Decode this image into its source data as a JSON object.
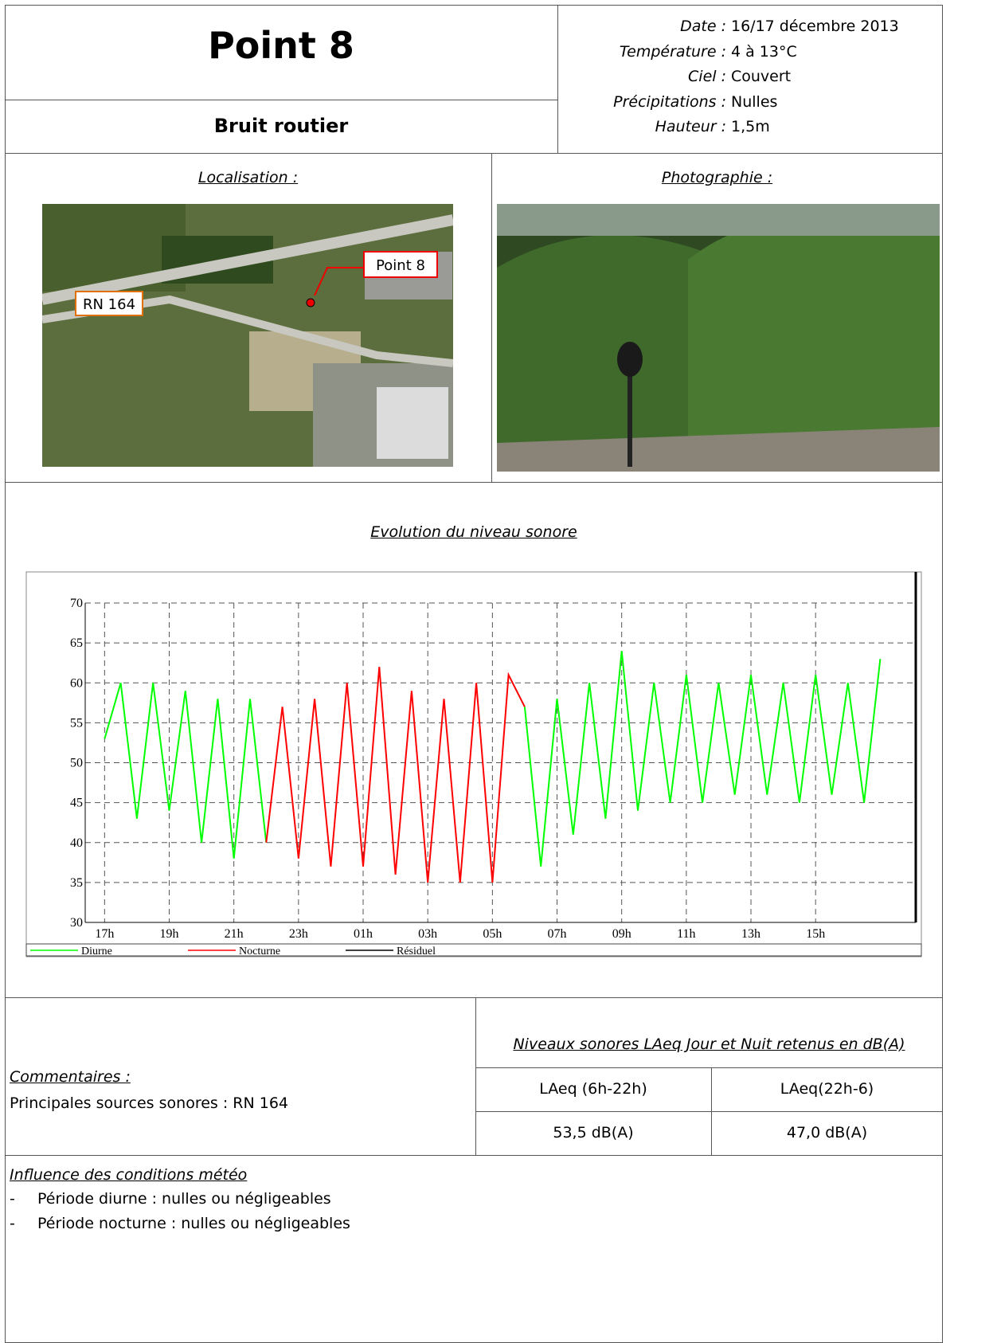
{
  "header": {
    "title": "Point 8",
    "subtitle": "Bruit routier",
    "meta": [
      {
        "label": "Date :",
        "value": "16/17 décembre 2013"
      },
      {
        "label": "Température :",
        "value": "4 à 13°C"
      },
      {
        "label": "Ciel :",
        "value": "Couvert"
      },
      {
        "label": "Précipitations :",
        "value": "Nulles"
      },
      {
        "label": "Hauteur :",
        "value": "1,5m"
      }
    ]
  },
  "localisation": {
    "title": "Localisation :",
    "point_label": "Point 8",
    "road_label": "RN 164"
  },
  "photo": {
    "title": "Photographie :"
  },
  "chart_data": {
    "type": "line",
    "title": "Evolution du niveau sonore",
    "x": [
      17,
      17.5,
      18,
      18.5,
      19,
      19.5,
      20,
      20.5,
      21,
      21.5,
      22,
      22.5,
      23,
      23.5,
      24,
      24.5,
      25,
      25.5,
      26,
      26.5,
      27,
      27.5,
      28,
      28.5,
      29,
      29.5,
      30,
      30.5,
      31,
      31.5,
      32,
      32.5,
      33,
      33.5,
      34,
      34.5,
      35,
      35.5,
      36,
      36.5,
      37,
      37.5,
      38,
      38.5,
      39,
      39.5,
      40,
      40.5,
      41
    ],
    "series": [
      {
        "name": "Diurne",
        "color": "#00ff00",
        "values": [
          53,
          60,
          43,
          60,
          44,
          59,
          40,
          58,
          38,
          58,
          40,
          null,
          null,
          null,
          null,
          null,
          null,
          null,
          null,
          null,
          null,
          null,
          null,
          null,
          null,
          null,
          57,
          37,
          58,
          41,
          60,
          43,
          64,
          44,
          60,
          45,
          61,
          45,
          60,
          46,
          61,
          46,
          60,
          45,
          61,
          46,
          60,
          45,
          63
        ]
      },
      {
        "name": "Nocturne",
        "color": "#ff0000",
        "values": [
          null,
          null,
          null,
          null,
          null,
          null,
          null,
          null,
          null,
          null,
          40,
          57,
          38,
          58,
          37,
          60,
          37,
          62,
          36,
          59,
          35,
          58,
          35,
          60,
          35,
          61,
          57,
          null,
          null,
          null,
          null,
          null,
          null,
          null,
          null,
          null,
          null,
          null,
          null,
          null,
          null,
          null,
          null,
          null,
          null,
          null,
          null,
          null,
          null
        ]
      },
      {
        "name": "Résiduel",
        "color": "#000000",
        "values": [
          null,
          null,
          null,
          null,
          null,
          null,
          null,
          null,
          null,
          null,
          null,
          null,
          null,
          null,
          null,
          null,
          null,
          null,
          null,
          null,
          null,
          null,
          null,
          null,
          null,
          null,
          null,
          null,
          null,
          null,
          null,
          null,
          null,
          null,
          null,
          null,
          null,
          null,
          null,
          null,
          null,
          null,
          null,
          null,
          null,
          null,
          null,
          null,
          null
        ]
      }
    ],
    "xlim": [
      16.4,
      42.1
    ],
    "xticks": [
      {
        "value": 17,
        "label": "17h"
      },
      {
        "value": 19,
        "label": "19h"
      },
      {
        "value": 21,
        "label": "21h"
      },
      {
        "value": 23,
        "label": "23h"
      },
      {
        "value": 25,
        "label": "01h"
      },
      {
        "value": 27,
        "label": "03h"
      },
      {
        "value": 29,
        "label": "05h"
      },
      {
        "value": 31,
        "label": "07h"
      },
      {
        "value": 33,
        "label": "09h"
      },
      {
        "value": 35,
        "label": "11h"
      },
      {
        "value": 37,
        "label": "13h"
      },
      {
        "value": 39,
        "label": "15h"
      }
    ],
    "ylim": [
      30,
      70
    ],
    "yticks": [
      30,
      35,
      40,
      45,
      50,
      55,
      60,
      65,
      70
    ],
    "grid": true
  },
  "comments": {
    "title": "Commentaires :",
    "text": "Principales sources sonores : RN 164"
  },
  "table": {
    "title": "Niveaux sonores LAeq Jour et Nuit retenus en dB(A)",
    "header": [
      "LAeq (6h-22h)",
      "LAeq(22h-6)"
    ],
    "rows": [
      [
        "53,5 dB(A)",
        "47,0 dB(A)"
      ]
    ]
  },
  "meteo": {
    "title": "Influence des conditions météo",
    "items": [
      "Période diurne : nulles ou négligeables",
      "Période nocturne : nulles ou négligeables"
    ]
  }
}
